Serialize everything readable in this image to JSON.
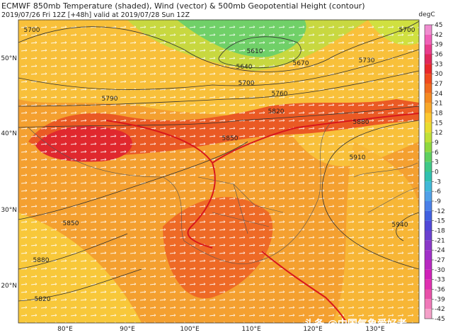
{
  "header": {
    "title": "ECMWF 850mb Temperature (shaded), Wind (vector) & 500mb Geopotential Height (contour)",
    "subtitle": "2019/07/26 Fri 12Z [+48h] valid at 2019/07/28 Sun 12Z"
  },
  "map": {
    "lat_labels": [
      "50°N",
      "40°N",
      "30°N",
      "20°N"
    ],
    "lon_labels": [
      "80°E",
      "90°E",
      "100°E",
      "110°E",
      "120°E",
      "130°E"
    ],
    "contour_labels": [
      "5700",
      "5610",
      "5640",
      "5670",
      "5730",
      "5700",
      "5700",
      "5790",
      "5760",
      "5820",
      "5880",
      "5850",
      "5910",
      "5850",
      "5940",
      "5880",
      "5820"
    ]
  },
  "colorbar": {
    "label": "degC",
    "ticks": [
      45,
      42,
      39,
      36,
      33,
      30,
      27,
      24,
      21,
      18,
      15,
      12,
      9,
      6,
      3,
      0,
      -3,
      -6,
      -9,
      -12,
      -15,
      -18,
      -21,
      -24,
      -27,
      -30,
      -33,
      -36,
      -39,
      -42,
      -45
    ],
    "colors": [
      "#f08cd0",
      "#f060b8",
      "#e83c8c",
      "#e0285a",
      "#e8282a",
      "#f04a1e",
      "#f06a1e",
      "#f48a20",
      "#f8a828",
      "#fcc830",
      "#e8dc30",
      "#c0e038",
      "#90d840",
      "#60d060",
      "#40c888",
      "#30c0b0",
      "#40b8d8",
      "#50a0e8",
      "#4a80e8",
      "#4060e0",
      "#5048d8",
      "#6a40d0",
      "#8a38c8",
      "#a030c8",
      "#b828c0",
      "#d020b8",
      "#e030b0",
      "#e850a8",
      "#f078b8",
      "#f4a0c8"
    ]
  },
  "watermark": "头条 @中国气象爱好者"
}
